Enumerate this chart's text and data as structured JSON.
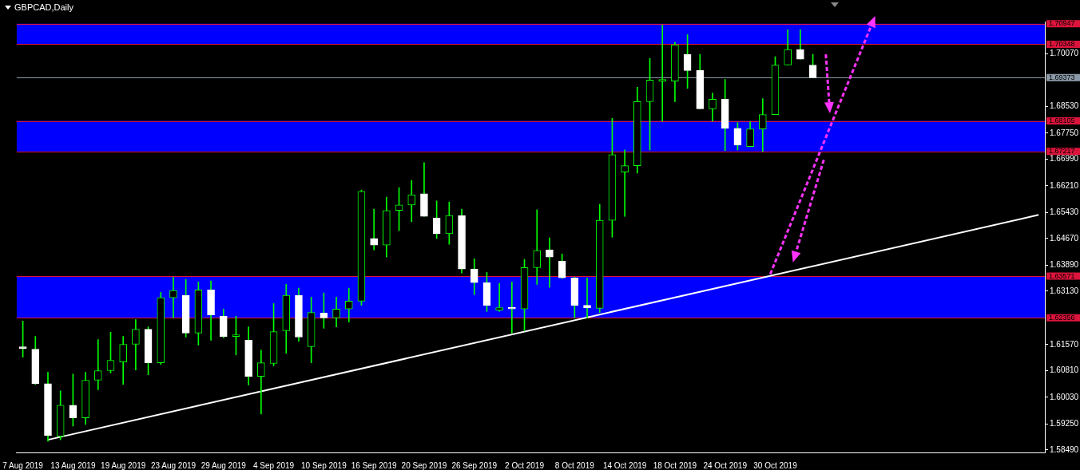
{
  "chart_data": {
    "type": "candlestick",
    "title": "GBPCAD,Daily",
    "categories": [
      "7 Aug 2019",
      null,
      null,
      null,
      "13 Aug 2019",
      null,
      null,
      null,
      "19 Aug 2019",
      null,
      null,
      null,
      "23 Aug 2019",
      null,
      null,
      null,
      "29 Aug 2019",
      null,
      null,
      null,
      "4 Sep 2019",
      null,
      null,
      null,
      "10 Sep 2019",
      null,
      null,
      null,
      "16 Sep 2019",
      null,
      null,
      null,
      "20 Sep 2019",
      null,
      null,
      null,
      "26 Sep 2019",
      null,
      null,
      null,
      "2 Oct 2019",
      null,
      null,
      null,
      "8 Oct 2019",
      null,
      null,
      null,
      "14 Oct 2019",
      null,
      null,
      null,
      "18 Oct 2019",
      null,
      null,
      null,
      "24 Oct 2019",
      null,
      null,
      null,
      "30 Oct 2019",
      null,
      null,
      null,
      null,
      null,
      null,
      null,
      null,
      null,
      null,
      null,
      null,
      null,
      null,
      null,
      null,
      null,
      null,
      null,
      null,
      null
    ],
    "ylim": [
      1.5842,
      1.7101
    ],
    "yticks": [
      {
        "value": 1.5849,
        "label": "1.58490"
      },
      {
        "value": 1.5925,
        "label": "1.59250"
      },
      {
        "value": 1.6003,
        "label": "1.60030"
      },
      {
        "value": 1.6081,
        "label": "1.60810"
      },
      {
        "value": 1.6157,
        "label": "1.61570"
      },
      {
        "value": 1.6313,
        "label": "1.63130"
      },
      {
        "value": 1.6389,
        "label": "1.63890"
      },
      {
        "value": 1.6467,
        "label": "1.64670"
      },
      {
        "value": 1.6543,
        "label": "1.65430"
      },
      {
        "value": 1.6621,
        "label": "1.66210"
      },
      {
        "value": 1.6699,
        "label": "1.66990"
      },
      {
        "value": 1.6775,
        "label": "1.67750"
      },
      {
        "value": 1.6853,
        "label": "1.68530"
      },
      {
        "value": 1.7007,
        "label": "1.70070"
      }
    ],
    "grid": false,
    "legend": false,
    "series": [
      {
        "type": "candlestick",
        "ohlc": [
          [
            1.6148,
            1.6226,
            1.612,
            1.6146
          ],
          [
            1.6144,
            1.6181,
            1.6041,
            1.6043
          ],
          [
            1.6043,
            1.6076,
            1.5875,
            1.5891
          ],
          [
            1.5889,
            1.6022,
            1.5879,
            1.598
          ],
          [
            1.598,
            1.6071,
            1.5919,
            1.5943
          ],
          [
            1.5943,
            1.6076,
            1.5924,
            1.6053
          ],
          [
            1.6053,
            1.6172,
            1.6025,
            1.6081
          ],
          [
            1.6081,
            1.6193,
            1.6074,
            1.6111
          ],
          [
            1.6106,
            1.6181,
            1.6041,
            1.6158
          ],
          [
            1.6158,
            1.623,
            1.6083,
            1.6202
          ],
          [
            1.6202,
            1.6209,
            1.6069,
            1.6104
          ],
          [
            1.6104,
            1.631,
            1.6099,
            1.6294
          ],
          [
            1.6294,
            1.6354,
            1.6235,
            1.6315
          ],
          [
            1.6301,
            1.6347,
            1.6179,
            1.6191
          ],
          [
            1.6191,
            1.634,
            1.6156,
            1.6317
          ],
          [
            1.6317,
            1.6343,
            1.617,
            1.6244
          ],
          [
            1.624,
            1.6261,
            1.6177,
            1.6181
          ],
          [
            1.6181,
            1.624,
            1.6127,
            1.6181
          ],
          [
            1.617,
            1.6209,
            1.6039,
            1.6064
          ],
          [
            1.6064,
            1.6141,
            1.5954,
            1.6104
          ],
          [
            1.6102,
            1.6277,
            1.6095,
            1.6195
          ],
          [
            1.6198,
            1.6333,
            1.6132,
            1.6301
          ],
          [
            1.6301,
            1.6322,
            1.6167,
            1.6179
          ],
          [
            1.6151,
            1.6296,
            1.6104,
            1.6251
          ],
          [
            1.6249,
            1.6308,
            1.6205,
            1.6235
          ],
          [
            1.6235,
            1.6296,
            1.6209,
            1.6261
          ],
          [
            1.6261,
            1.6322,
            1.6223,
            1.6284
          ],
          [
            1.6284,
            1.6609,
            1.6272,
            1.6605
          ],
          [
            1.6467,
            1.6553,
            1.6434,
            1.6448
          ],
          [
            1.6448,
            1.6588,
            1.6413,
            1.6549
          ],
          [
            1.6549,
            1.6616,
            1.649,
            1.6565
          ],
          [
            1.6565,
            1.6637,
            1.6516,
            1.6595
          ],
          [
            1.6598,
            1.6689,
            1.6532,
            1.6532
          ],
          [
            1.6527,
            1.6577,
            1.6467,
            1.6481
          ],
          [
            1.6481,
            1.6574,
            1.645,
            1.6534
          ],
          [
            1.6534,
            1.6553,
            1.6366,
            1.6378
          ],
          [
            1.6378,
            1.6408,
            1.6303,
            1.6338
          ],
          [
            1.6338,
            1.6368,
            1.6254,
            1.6272
          ],
          [
            1.6258,
            1.6336,
            1.6254,
            1.6265
          ],
          [
            1.6265,
            1.634,
            1.6191,
            1.6261
          ],
          [
            1.6261,
            1.6406,
            1.6198,
            1.6382
          ],
          [
            1.6382,
            1.6551,
            1.6333,
            1.6432
          ],
          [
            1.6434,
            1.6469,
            1.6324,
            1.6413
          ],
          [
            1.6401,
            1.6422,
            1.635,
            1.6352
          ],
          [
            1.6352,
            1.6354,
            1.6235,
            1.6272
          ],
          [
            1.6272,
            1.6352,
            1.6235,
            1.6265
          ],
          [
            1.6263,
            1.6567,
            1.6251,
            1.652
          ],
          [
            1.652,
            1.6818,
            1.6471,
            1.6712
          ],
          [
            1.6661,
            1.6726,
            1.6532,
            1.668
          ],
          [
            1.668,
            1.6909,
            1.6658,
            1.6867
          ],
          [
            1.6867,
            1.6993,
            1.6726,
            1.693
          ],
          [
            1.6927,
            1.7091,
            1.681,
            1.6927
          ],
          [
            1.6927,
            1.704,
            1.6867,
            1.7033
          ],
          [
            1.7005,
            1.7063,
            1.6906,
            1.6958
          ],
          [
            1.6958,
            1.7005,
            1.6846,
            1.6846
          ],
          [
            1.6846,
            1.6892,
            1.681,
            1.6874
          ],
          [
            1.6874,
            1.6932,
            1.6724,
            1.6789
          ],
          [
            1.6789,
            1.6806,
            1.6726,
            1.674
          ],
          [
            1.6736,
            1.6808,
            1.6736,
            1.6787
          ],
          [
            1.6787,
            1.6876,
            1.6722,
            1.6829
          ],
          [
            1.6829,
            1.6998,
            1.6829,
            1.6974
          ],
          [
            1.6974,
            1.7077,
            1.6974,
            1.7019
          ],
          [
            1.7019,
            1.7077,
            1.6991,
            1.6991
          ],
          [
            1.6974,
            1.7005,
            1.6937,
            1.6937
          ],
          null,
          null,
          null,
          null,
          null,
          null,
          null,
          null,
          null,
          null,
          null,
          null,
          null,
          null,
          null,
          null,
          null,
          null
        ]
      },
      {
        "type": "line",
        "color": "#ffffff",
        "values": [
          null,
          null,
          1.5879,
          null,
          null,
          null,
          null,
          null,
          null,
          null,
          null,
          null,
          null,
          null,
          null,
          null,
          null,
          null,
          null,
          null,
          null,
          null,
          null,
          null,
          null,
          null,
          null,
          null,
          null,
          null,
          null,
          null,
          null,
          null,
          null,
          null,
          null,
          null,
          null,
          null,
          null,
          null,
          null,
          null,
          null,
          null,
          null,
          null,
          null,
          null,
          null,
          null,
          null,
          null,
          null,
          null,
          null,
          null,
          null,
          null,
          null,
          null,
          null,
          null,
          null,
          null,
          null,
          null,
          null,
          null,
          null,
          null,
          null,
          null,
          null,
          null,
          null,
          null,
          null,
          null,
          null,
          1.6536
        ]
      }
    ],
    "bands": [
      {
        "axis": "y",
        "from": 1.70348,
        "to": 1.70947,
        "color": "#0000ff"
      },
      {
        "axis": "y",
        "from": 1.67217,
        "to": 1.68105,
        "color": "#0000ff"
      },
      {
        "axis": "y",
        "from": 1.62356,
        "to": 1.63571,
        "color": "#0000ff"
      }
    ],
    "ref_lines": [
      {
        "axis": "y",
        "value": 1.70947,
        "label": "1.70947",
        "color": "#dc143c"
      },
      {
        "axis": "y",
        "value": 1.70348,
        "label": "1.70348",
        "color": "#dc143c"
      },
      {
        "axis": "y",
        "value": 1.69373,
        "label": "1.69373",
        "color": "#8a9aa8"
      },
      {
        "axis": "y",
        "value": 1.68105,
        "label": "1.68105",
        "color": "#dc143c"
      },
      {
        "axis": "y",
        "value": 1.67217,
        "label": "1.67217",
        "color": "#dc143c"
      },
      {
        "axis": "y",
        "value": 1.63571,
        "label": "1.63571",
        "color": "#dc143c"
      },
      {
        "axis": "y",
        "value": 1.62356,
        "label": "1.62356",
        "color": "#dc143c"
      }
    ]
  }
}
